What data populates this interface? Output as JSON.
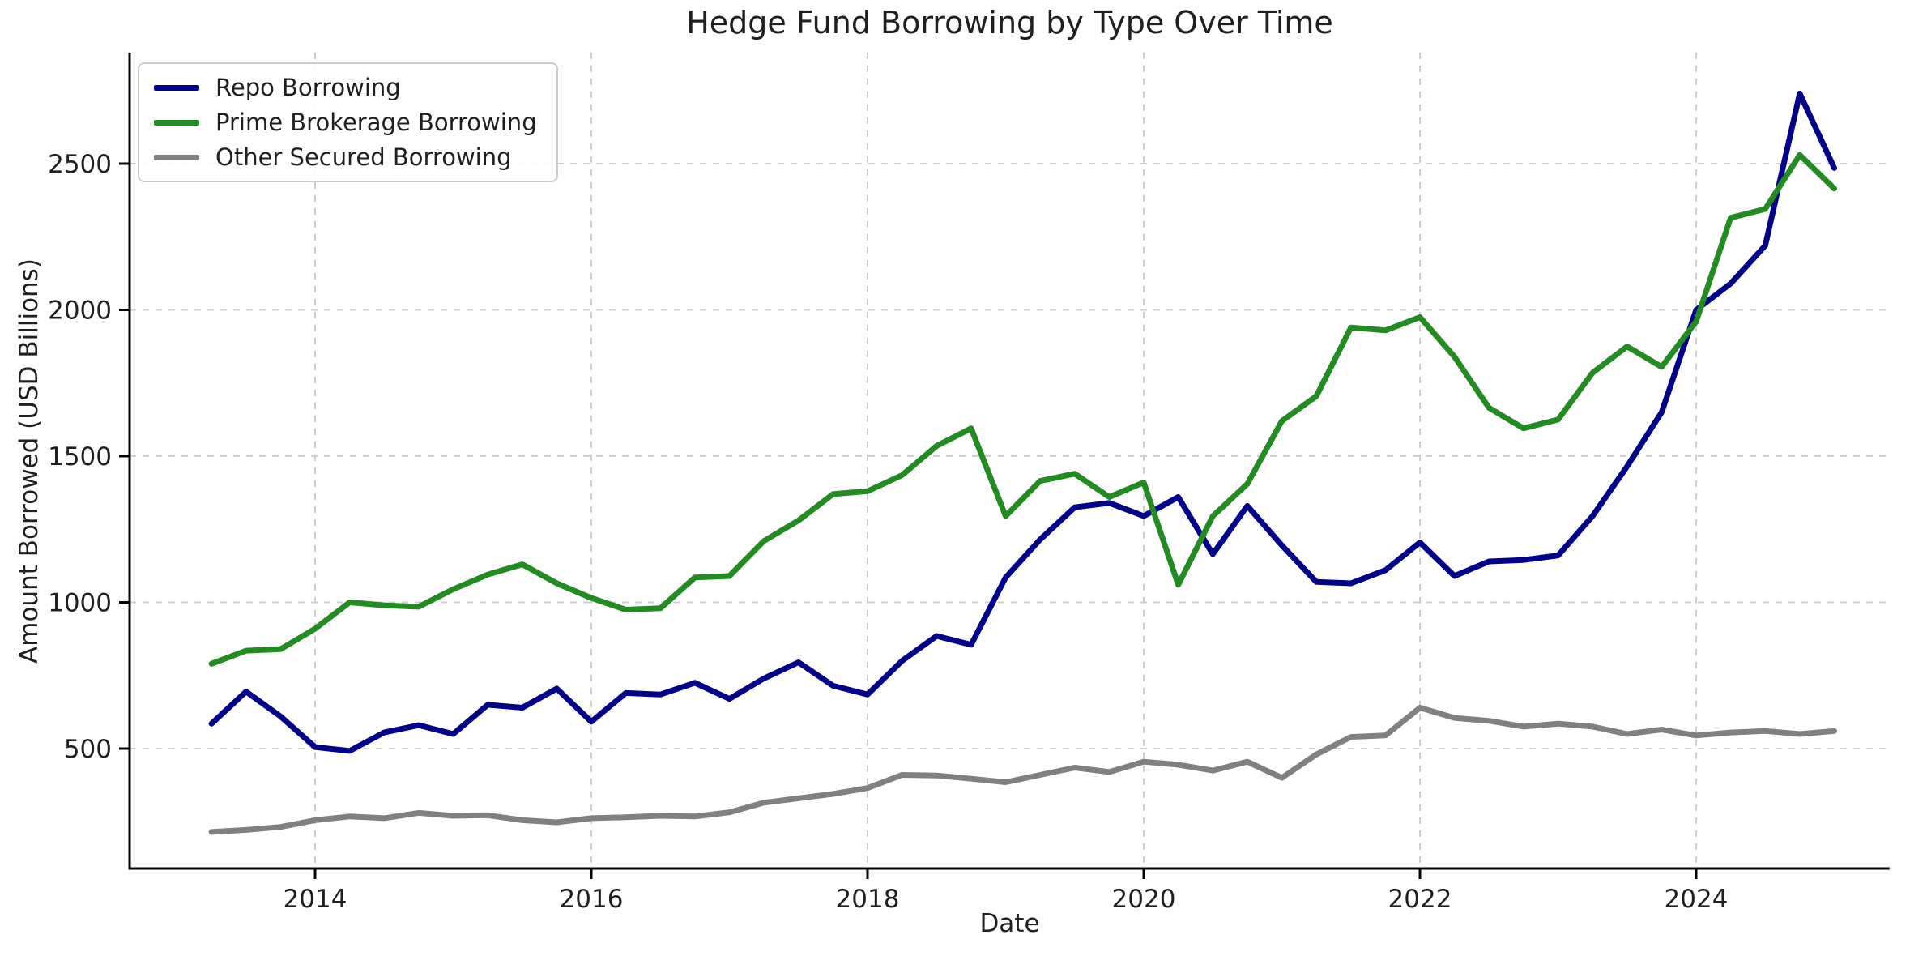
{
  "title": "Hedge Fund Borrowing by Type Over Time",
  "axes": {
    "xlabel": "Date",
    "ylabel": "Amount Borrowed (USD Billions)",
    "x_tick_labels": [
      "2014",
      "2016",
      "2018",
      "2020",
      "2022",
      "2024"
    ],
    "y_tick_labels": [
      "500",
      "1000",
      "1500",
      "2000",
      "2500"
    ]
  },
  "chart_data": {
    "type": "line",
    "title": "Hedge Fund Borrowing by Type Over Time",
    "xlabel": "Date",
    "ylabel": "Amount Borrowed (USD Billions)",
    "x_unit": "quarter-end, plotted at decimal year",
    "x_quarters": [
      "2013Q1",
      "2013Q2",
      "2013Q3",
      "2013Q4",
      "2014Q1",
      "2014Q2",
      "2014Q3",
      "2014Q4",
      "2015Q1",
      "2015Q2",
      "2015Q3",
      "2015Q4",
      "2016Q1",
      "2016Q2",
      "2016Q3",
      "2016Q4",
      "2017Q1",
      "2017Q2",
      "2017Q3",
      "2017Q4",
      "2018Q1",
      "2018Q2",
      "2018Q3",
      "2018Q4",
      "2019Q1",
      "2019Q2",
      "2019Q3",
      "2019Q4",
      "2020Q1",
      "2020Q2",
      "2020Q3",
      "2020Q4",
      "2021Q1",
      "2021Q2",
      "2021Q3",
      "2021Q4",
      "2022Q1",
      "2022Q2",
      "2022Q3",
      "2022Q4",
      "2023Q1",
      "2023Q2",
      "2023Q3",
      "2023Q4",
      "2024Q1",
      "2024Q2",
      "2024Q3",
      "2024Q4"
    ],
    "x_start": 2013.25,
    "x_step": 0.25,
    "series": [
      {
        "name": "Repo Borrowing",
        "color": "#00008b",
        "values": [
          585,
          695,
          610,
          505,
          492,
          555,
          580,
          550,
          650,
          640,
          705,
          592,
          690,
          685,
          725,
          670,
          740,
          795,
          715,
          685,
          800,
          885,
          855,
          1085,
          1215,
          1325,
          1340,
          1295,
          1360,
          1165,
          1330,
          1195,
          1070,
          1065,
          1110,
          1205,
          1090,
          1140,
          1145,
          1160,
          1295,
          1465,
          1650,
          2000,
          2090,
          2220,
          2740,
          2485
        ]
      },
      {
        "name": "Prime Brokerage Borrowing",
        "color": "#228b22",
        "values": [
          790,
          835,
          840,
          910,
          1000,
          990,
          985,
          1045,
          1095,
          1130,
          1065,
          1015,
          975,
          980,
          1085,
          1090,
          1210,
          1280,
          1370,
          1380,
          1435,
          1535,
          1595,
          1295,
          1415,
          1440,
          1360,
          1410,
          1060,
          1295,
          1405,
          1620,
          1705,
          1940,
          1930,
          1975,
          1840,
          1665,
          1595,
          1625,
          1785,
          1875,
          1805,
          1960,
          2315,
          2345,
          2530,
          2415
        ]
      },
      {
        "name": "Other Secured Borrowing",
        "color": "#808080",
        "values": [
          215,
          222,
          232,
          255,
          268,
          262,
          280,
          270,
          272,
          255,
          248,
          262,
          265,
          270,
          268,
          282,
          315,
          330,
          345,
          365,
          410,
          408,
          397,
          385,
          410,
          435,
          420,
          455,
          445,
          425,
          455,
          400,
          480,
          540,
          545,
          640,
          605,
          595,
          575,
          585,
          575,
          550,
          565,
          545,
          555,
          560,
          550,
          560
        ]
      }
    ],
    "x_ticks": [
      2014,
      2016,
      2018,
      2020,
      2022,
      2024
    ],
    "y_ticks": [
      500,
      1000,
      1500,
      2000,
      2500
    ],
    "xlim": [
      2012.65,
      2025.4
    ],
    "ylim": [
      90,
      2880
    ],
    "grid": true,
    "grid_style": "dashed",
    "legend_position": "upper left",
    "background": "#ffffff"
  }
}
